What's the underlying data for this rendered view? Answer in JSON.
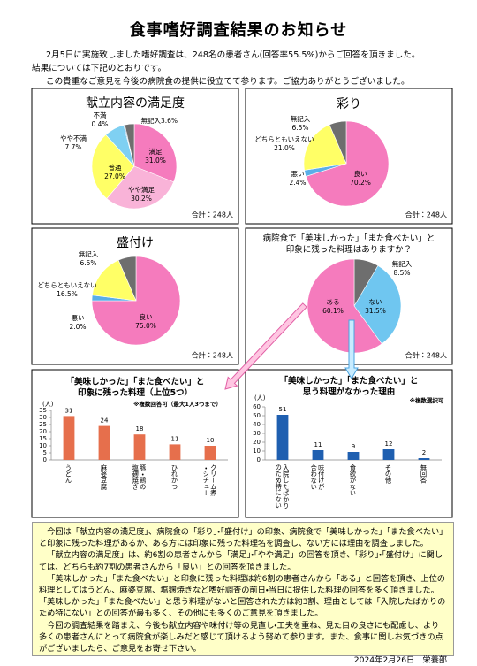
{
  "title": "食事嗜好調査結果のお知らせ",
  "intro": [
    "2月5日に実施致しました嗜好調査は、248名の患者さん(回答率55.5%)からご回答を頂きました。",
    "結果については下記のとおりです。",
    "この貴重なご意見を今後の病院食の提供に役立てて参ります。ご協力ありがとうございました。"
  ],
  "chart_data": [
    {
      "type": "pie",
      "title": "献立内容の満足度",
      "categories": [
        "満足",
        "やや満足",
        "普通",
        "やや不満",
        "不満",
        "無記入"
      ],
      "values": [
        31.0,
        30.2,
        27.0,
        7.7,
        0.4,
        3.6
      ],
      "value_labels": [
        "31.0%",
        "30.2%",
        "27.0%",
        "7.7%",
        "0.4%",
        "3.6%"
      ],
      "colors": [
        "#f57bbd",
        "#f9b3d8",
        "#ffff66",
        "#7fd0f2",
        "#3a8fd0",
        "#6e6e6e"
      ],
      "total_label": "合計：248人"
    },
    {
      "type": "pie",
      "title": "彩り",
      "categories": [
        "良い",
        "悪い",
        "どちらともいえない",
        "無記入"
      ],
      "values": [
        70.2,
        2.4,
        21.0,
        6.5
      ],
      "value_labels": [
        "70.2%",
        "2.4%",
        "21.0%",
        "6.5%"
      ],
      "colors": [
        "#f57bbd",
        "#5aaee8",
        "#ffff66",
        "#6e6e6e"
      ],
      "total_label": "合計：248人"
    },
    {
      "type": "pie",
      "title": "盛付け",
      "categories": [
        "良い",
        "悪い",
        "どちらともいえない",
        "無記入"
      ],
      "values": [
        75.0,
        2.0,
        16.5,
        6.5
      ],
      "value_labels": [
        "75.0%",
        "2.0%",
        "16.5%",
        "6.5%"
      ],
      "colors": [
        "#f57bbd",
        "#5aaee8",
        "#ffff66",
        "#6e6e6e"
      ],
      "total_label": "合計：248人"
    },
    {
      "type": "pie",
      "title": [
        "病院食で「美味しかった」「また食べたい」と",
        "印象に残った料理はありますか？"
      ],
      "categories": [
        "無記入",
        "ない",
        "ある"
      ],
      "values": [
        8.5,
        31.5,
        60.1
      ],
      "value_labels": [
        "8.5%",
        "31.5%",
        "60.1%"
      ],
      "colors": [
        "#6e6e6e",
        "#6fc6f0",
        "#f57bbd"
      ],
      "total_label": "合計：248人"
    },
    {
      "type": "bar",
      "title": [
        "「美味しかった」「また食べたい」と",
        "印象に残った料理（上位5つ）"
      ],
      "note": "※複数回答可（最大1人3つまで）",
      "y_label": "(人)",
      "categories": [
        "うどん",
        "麻婆豆腐",
        "豚・鶏の塩麹焼き",
        "ひれかつ",
        "クリーム煮・シチュー"
      ],
      "values": [
        31,
        24,
        18,
        11,
        10
      ],
      "color": "#e66f4c",
      "ylim": [
        0,
        35
      ],
      "yticks": [
        0,
        5,
        10,
        15,
        20,
        25,
        30,
        35
      ]
    },
    {
      "type": "bar",
      "title": [
        "「美味しかった」「また食べたい」と",
        "思う料理がなかった理由"
      ],
      "note": "※複数選択可",
      "y_label": "(人)",
      "categories": [
        "入院したばかりのため特にない",
        "味付けが合わない",
        "食欲がない",
        "その他",
        "無回答"
      ],
      "values": [
        51,
        11,
        9,
        12,
        2
      ],
      "color": "#1f5fb0",
      "ylim": [
        0,
        60
      ],
      "yticks": [
        0,
        10,
        20,
        30,
        40,
        50,
        60
      ]
    }
  ],
  "summary": [
    "今回は「献立内容の満足度」、病院食の「彩り」・「盛付け」の印象、病院食で「美味しかった」「また食べたい」と印象に残った料理があるか、ある方には印象に残った料理名を調査し、ない方には理由を調査しました。",
    "「献立内容の満足度」は、約6割の患者さんから「満足」・「やや満足」の回答を頂き、「彩り」・「盛付け」に関しては、どちらも約7割の患者さんから「良い」との回答を頂きました。",
    "「美味しかった」「また食べたい」と印象に残った料理は約6割の患者さんから「ある」と回答を頂き、上位の料理としてはうどん、麻婆豆腐、塩麹焼きなど嗜好調査の前日・当日に提供した料理の回答を多く頂きました。「美味しかった」「また食べたい」と思う料理がないと回答された方は約3割、理由としては「入院したばかりのため特にない」との回答が最も多く、その他にも多くのご意見を頂きました。",
    "今回の調査結果を踏まえ、今後も献立内容や味付け等の見直し・工夫を重ね、見た目の良さにも配慮し、より多くの患者さんにとって病院食が楽しみだと感じて頂けるよう努めて参ります。また、食事に関しお気づきの点がございましたら、ご意見をお寄せ下さい。"
  ],
  "footer": "2024年2月26日　栄養部"
}
